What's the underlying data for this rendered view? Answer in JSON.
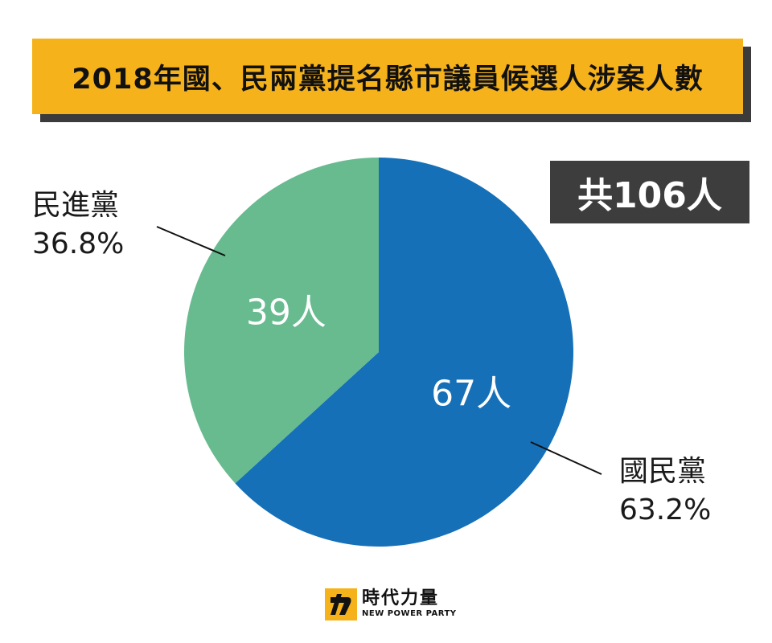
{
  "title": "2018年國、民兩黨提名縣市議員候選人涉案人數",
  "total_label": "共106人",
  "chart_data": {
    "type": "pie",
    "title": "2018年國、民兩黨提名縣市議員候選人涉案人數",
    "slices": [
      {
        "name": "國民黨",
        "value": 67,
        "value_label": "67人",
        "percent_label": "63.2%",
        "color": "#1570b8"
      },
      {
        "name": "民進黨",
        "value": 39,
        "value_label": "39人",
        "percent_label": "36.8%",
        "color": "#67bb8f"
      }
    ],
    "total": 106
  },
  "logo": {
    "text_cn": "時代力量",
    "text_en": "NEW POWER PARTY",
    "color": "#f6b21b"
  }
}
